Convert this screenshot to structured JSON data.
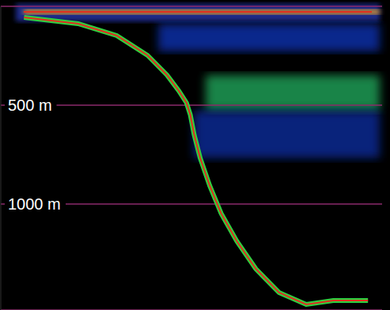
{
  "chart_data": {
    "type": "line",
    "x": [
      6.1,
      20.3,
      30.4,
      38.5,
      43.6,
      46.7,
      48.7,
      49.7,
      50.7,
      52.3,
      54.8,
      57.8,
      61.9,
      66.9,
      73.0,
      80.1,
      87.2,
      96.3
    ],
    "values": [
      56,
      88,
      148,
      248,
      348,
      428,
      488,
      548,
      648,
      768,
      908,
      1048,
      1188,
      1328,
      1448,
      1508,
      1488,
      1488
    ],
    "color": "#e03020",
    "xlim": [
      0,
      100
    ],
    "ylim": [
      0,
      1536
    ],
    "yticks": [
      {
        "value": 500,
        "label": "500 m"
      },
      {
        "value": 1000,
        "label": "1000 m"
      }
    ],
    "grid": true,
    "tick_labels": "y"
  }
}
